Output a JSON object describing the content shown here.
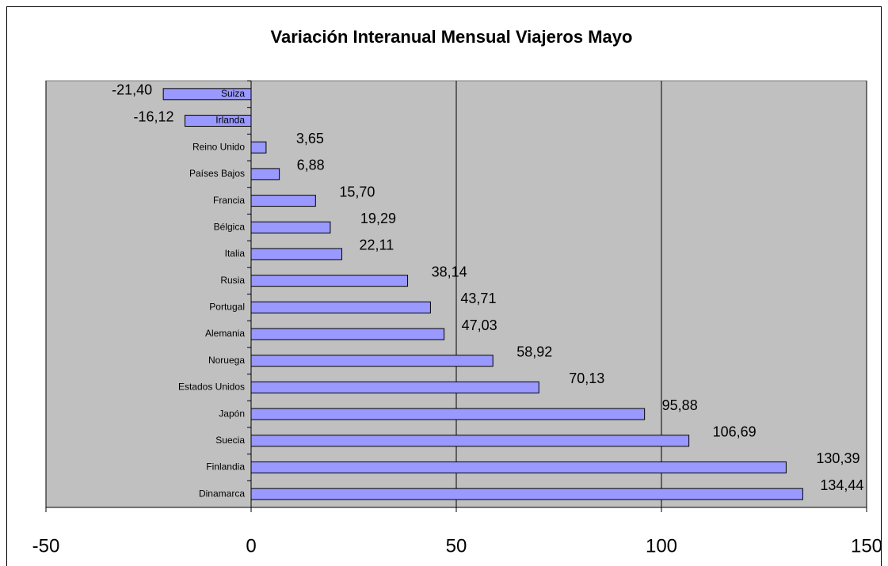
{
  "chart_data": {
    "type": "hbar",
    "title": "Variación Interanual Mensual Viajeros Mayo",
    "categories": [
      "Suiza",
      "Irlanda",
      "Reino Unido",
      "Países Bajos",
      "Francia",
      "Bélgica",
      "Italia",
      "Rusia",
      "Portugal",
      "Alemania",
      "Noruega",
      "Estados Unidos",
      "Japón",
      "Suecia",
      "Finlandia",
      "Dinamarca"
    ],
    "values": [
      -21.4,
      -16.12,
      3.65,
      6.88,
      15.7,
      19.29,
      22.11,
      38.14,
      43.71,
      47.03,
      58.92,
      70.13,
      95.88,
      106.69,
      130.39,
      134.44
    ],
    "value_labels": [
      "-21,40",
      "-16,12",
      "3,65",
      "6,88",
      "15,70",
      "19,29",
      "22,11",
      "38,14",
      "43,71",
      "47,03",
      "58,92",
      "70,13",
      "95,88",
      "106,69",
      "130,39",
      "134,44"
    ],
    "color": "#9999ff",
    "xlim": [
      -50,
      150
    ],
    "xticks": [
      -50,
      0,
      50,
      100,
      150
    ],
    "grid": true
  }
}
